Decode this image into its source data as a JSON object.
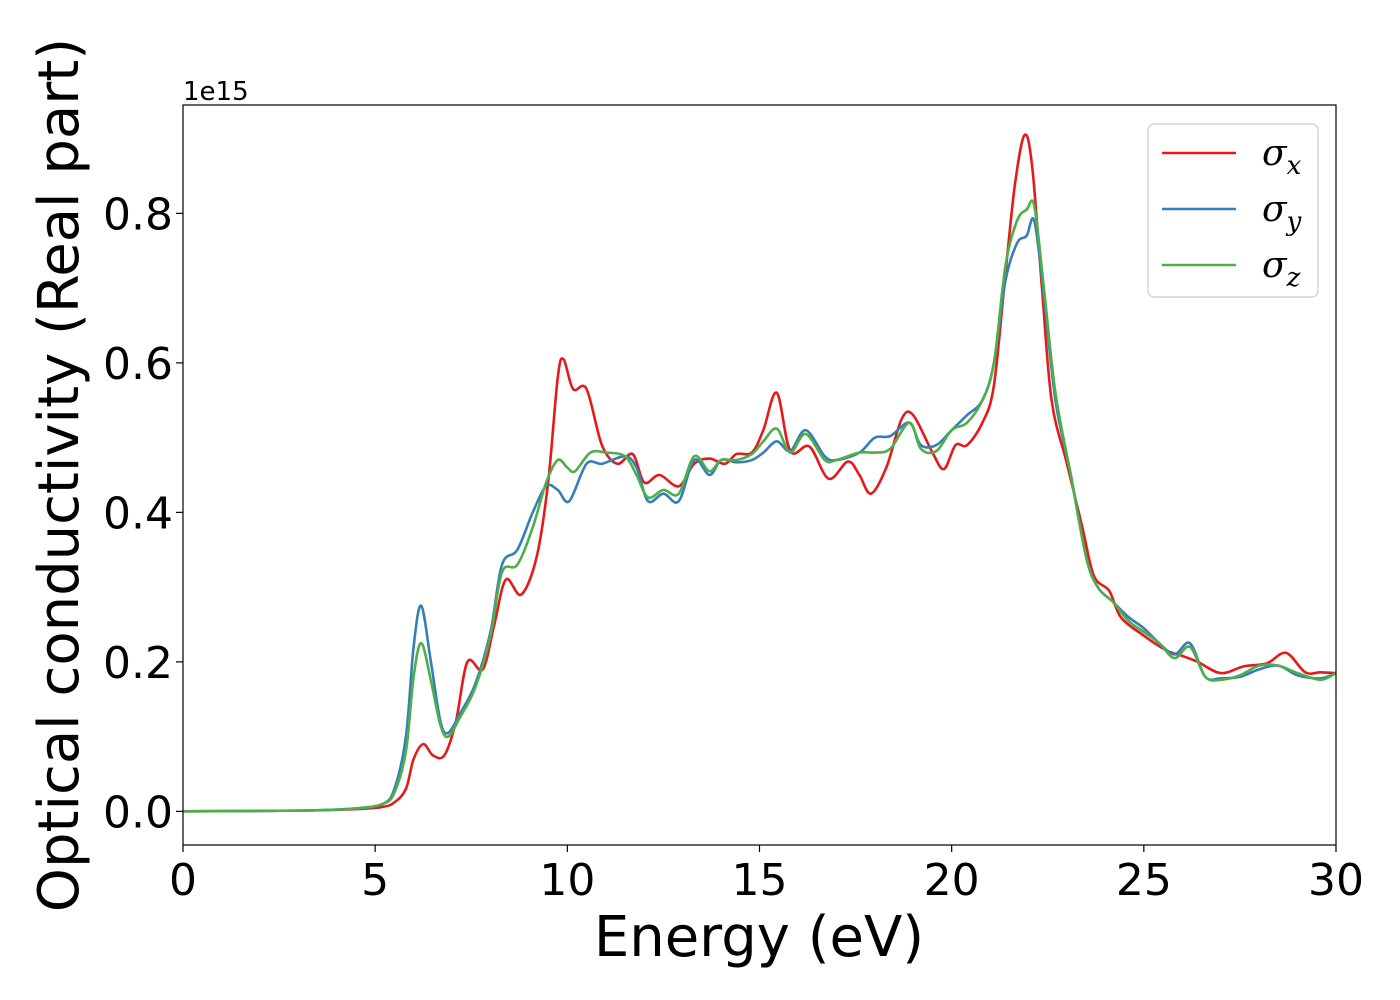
{
  "chart_data": {
    "type": "line",
    "xlabel": "Energy (eV)",
    "ylabel": "Optical conductivity (Real part)",
    "y_offset_label": "1e15",
    "xlim": [
      0,
      30
    ],
    "ylim": [
      -0.045,
      0.945
    ],
    "x_ticks": [
      0,
      5,
      10,
      15,
      20,
      25,
      30
    ],
    "x_tick_labels": [
      "0",
      "5",
      "10",
      "15",
      "20",
      "25",
      "30"
    ],
    "y_ticks": [
      0.0,
      0.2,
      0.4,
      0.6,
      0.8
    ],
    "y_tick_labels": [
      "0.0",
      "0.2",
      "0.4",
      "0.6",
      "0.8"
    ],
    "grid": false,
    "legend_position": "top-right",
    "series": [
      {
        "name": "σx",
        "symbol": "σ",
        "subscript": "x",
        "color": "#e41a1c",
        "points": [
          [
            0,
            0
          ],
          [
            3,
            0.001
          ],
          [
            4.5,
            0.003
          ],
          [
            5.2,
            0.006
          ],
          [
            5.5,
            0.012
          ],
          [
            5.8,
            0.03
          ],
          [
            6.0,
            0.07
          ],
          [
            6.25,
            0.09
          ],
          [
            6.5,
            0.075
          ],
          [
            6.8,
            0.075
          ],
          [
            7.1,
            0.12
          ],
          [
            7.4,
            0.2
          ],
          [
            7.8,
            0.19
          ],
          [
            8.1,
            0.25
          ],
          [
            8.4,
            0.31
          ],
          [
            8.8,
            0.29
          ],
          [
            9.2,
            0.34
          ],
          [
            9.5,
            0.44
          ],
          [
            9.75,
            0.58
          ],
          [
            9.9,
            0.605
          ],
          [
            10.15,
            0.565
          ],
          [
            10.5,
            0.565
          ],
          [
            10.9,
            0.49
          ],
          [
            11.3,
            0.465
          ],
          [
            11.7,
            0.478
          ],
          [
            12.0,
            0.44
          ],
          [
            12.4,
            0.45
          ],
          [
            12.9,
            0.435
          ],
          [
            13.3,
            0.465
          ],
          [
            13.7,
            0.472
          ],
          [
            14.1,
            0.465
          ],
          [
            14.4,
            0.478
          ],
          [
            14.8,
            0.48
          ],
          [
            15.1,
            0.51
          ],
          [
            15.45,
            0.56
          ],
          [
            15.8,
            0.482
          ],
          [
            16.3,
            0.488
          ],
          [
            16.8,
            0.445
          ],
          [
            17.3,
            0.468
          ],
          [
            17.6,
            0.45
          ],
          [
            17.9,
            0.425
          ],
          [
            18.3,
            0.46
          ],
          [
            18.7,
            0.525
          ],
          [
            19.0,
            0.53
          ],
          [
            19.5,
            0.48
          ],
          [
            19.8,
            0.458
          ],
          [
            20.1,
            0.49
          ],
          [
            20.4,
            0.49
          ],
          [
            20.8,
            0.52
          ],
          [
            21.1,
            0.57
          ],
          [
            21.4,
            0.72
          ],
          [
            21.65,
            0.84
          ],
          [
            21.9,
            0.905
          ],
          [
            22.1,
            0.86
          ],
          [
            22.35,
            0.7
          ],
          [
            22.6,
            0.55
          ],
          [
            23.0,
            0.465
          ],
          [
            23.4,
            0.38
          ],
          [
            23.7,
            0.315
          ],
          [
            24.1,
            0.295
          ],
          [
            24.4,
            0.26
          ],
          [
            25.0,
            0.235
          ],
          [
            25.6,
            0.215
          ],
          [
            26.0,
            0.208
          ],
          [
            26.4,
            0.2
          ],
          [
            27.0,
            0.185
          ],
          [
            27.6,
            0.194
          ],
          [
            28.2,
            0.198
          ],
          [
            28.7,
            0.212
          ],
          [
            29.2,
            0.186
          ],
          [
            29.6,
            0.186
          ],
          [
            30,
            0.185
          ]
        ]
      },
      {
        "name": "σy",
        "symbol": "σ",
        "subscript": "y",
        "color": "#377eb8",
        "points": [
          [
            0,
            0
          ],
          [
            3,
            0.001
          ],
          [
            4.5,
            0.004
          ],
          [
            5.2,
            0.01
          ],
          [
            5.5,
            0.03
          ],
          [
            5.8,
            0.1
          ],
          [
            6.0,
            0.22
          ],
          [
            6.2,
            0.275
          ],
          [
            6.45,
            0.2
          ],
          [
            6.7,
            0.12
          ],
          [
            6.9,
            0.105
          ],
          [
            7.2,
            0.13
          ],
          [
            7.6,
            0.17
          ],
          [
            8.0,
            0.24
          ],
          [
            8.3,
            0.33
          ],
          [
            8.7,
            0.35
          ],
          [
            9.1,
            0.4
          ],
          [
            9.45,
            0.435
          ],
          [
            9.75,
            0.43
          ],
          [
            10.05,
            0.415
          ],
          [
            10.5,
            0.465
          ],
          [
            10.9,
            0.465
          ],
          [
            11.5,
            0.475
          ],
          [
            11.8,
            0.46
          ],
          [
            12.1,
            0.415
          ],
          [
            12.5,
            0.425
          ],
          [
            12.9,
            0.415
          ],
          [
            13.3,
            0.47
          ],
          [
            13.7,
            0.45
          ],
          [
            14.0,
            0.47
          ],
          [
            14.4,
            0.467
          ],
          [
            14.8,
            0.47
          ],
          [
            15.1,
            0.48
          ],
          [
            15.45,
            0.495
          ],
          [
            15.8,
            0.482
          ],
          [
            16.2,
            0.51
          ],
          [
            16.7,
            0.475
          ],
          [
            17.0,
            0.47
          ],
          [
            17.6,
            0.48
          ],
          [
            18.0,
            0.5
          ],
          [
            18.4,
            0.502
          ],
          [
            18.9,
            0.52
          ],
          [
            19.2,
            0.49
          ],
          [
            19.6,
            0.49
          ],
          [
            20.0,
            0.51
          ],
          [
            20.4,
            0.53
          ],
          [
            20.8,
            0.55
          ],
          [
            21.1,
            0.6
          ],
          [
            21.4,
            0.71
          ],
          [
            21.7,
            0.76
          ],
          [
            21.95,
            0.77
          ],
          [
            22.15,
            0.79
          ],
          [
            22.4,
            0.69
          ],
          [
            22.7,
            0.55
          ],
          [
            23.1,
            0.45
          ],
          [
            23.5,
            0.34
          ],
          [
            23.8,
            0.3
          ],
          [
            24.2,
            0.28
          ],
          [
            24.6,
            0.26
          ],
          [
            25.0,
            0.245
          ],
          [
            25.4,
            0.225
          ],
          [
            25.8,
            0.21
          ],
          [
            26.2,
            0.225
          ],
          [
            26.6,
            0.18
          ],
          [
            27.0,
            0.178
          ],
          [
            27.5,
            0.18
          ],
          [
            28.0,
            0.19
          ],
          [
            28.5,
            0.195
          ],
          [
            29.0,
            0.182
          ],
          [
            29.6,
            0.178
          ],
          [
            30,
            0.185
          ]
        ]
      },
      {
        "name": "σz",
        "symbol": "σ",
        "subscript": "z",
        "color": "#4daf4a",
        "points": [
          [
            0,
            0
          ],
          [
            3,
            0.001
          ],
          [
            4.5,
            0.004
          ],
          [
            5.2,
            0.01
          ],
          [
            5.5,
            0.025
          ],
          [
            5.8,
            0.08
          ],
          [
            6.0,
            0.18
          ],
          [
            6.2,
            0.225
          ],
          [
            6.45,
            0.175
          ],
          [
            6.7,
            0.115
          ],
          [
            6.9,
            0.1
          ],
          [
            7.2,
            0.125
          ],
          [
            7.6,
            0.165
          ],
          [
            8.0,
            0.235
          ],
          [
            8.3,
            0.32
          ],
          [
            8.7,
            0.33
          ],
          [
            9.1,
            0.38
          ],
          [
            9.45,
            0.44
          ],
          [
            9.75,
            0.47
          ],
          [
            10.0,
            0.46
          ],
          [
            10.2,
            0.455
          ],
          [
            10.6,
            0.48
          ],
          [
            11.0,
            0.48
          ],
          [
            11.5,
            0.475
          ],
          [
            11.8,
            0.45
          ],
          [
            12.1,
            0.42
          ],
          [
            12.5,
            0.43
          ],
          [
            12.9,
            0.425
          ],
          [
            13.3,
            0.475
          ],
          [
            13.7,
            0.455
          ],
          [
            14.0,
            0.47
          ],
          [
            14.4,
            0.47
          ],
          [
            14.8,
            0.478
          ],
          [
            15.1,
            0.495
          ],
          [
            15.45,
            0.512
          ],
          [
            15.8,
            0.48
          ],
          [
            16.2,
            0.505
          ],
          [
            16.7,
            0.47
          ],
          [
            17.0,
            0.47
          ],
          [
            17.6,
            0.48
          ],
          [
            18.0,
            0.48
          ],
          [
            18.4,
            0.485
          ],
          [
            18.9,
            0.52
          ],
          [
            19.2,
            0.485
          ],
          [
            19.6,
            0.482
          ],
          [
            20.0,
            0.51
          ],
          [
            20.4,
            0.52
          ],
          [
            20.8,
            0.55
          ],
          [
            21.1,
            0.6
          ],
          [
            21.4,
            0.73
          ],
          [
            21.7,
            0.79
          ],
          [
            21.95,
            0.805
          ],
          [
            22.15,
            0.81
          ],
          [
            22.4,
            0.7
          ],
          [
            22.7,
            0.56
          ],
          [
            23.1,
            0.45
          ],
          [
            23.5,
            0.34
          ],
          [
            23.8,
            0.3
          ],
          [
            24.2,
            0.28
          ],
          [
            24.6,
            0.255
          ],
          [
            25.0,
            0.24
          ],
          [
            25.4,
            0.225
          ],
          [
            25.8,
            0.205
          ],
          [
            26.2,
            0.22
          ],
          [
            26.6,
            0.18
          ],
          [
            27.0,
            0.176
          ],
          [
            27.5,
            0.182
          ],
          [
            28.0,
            0.195
          ],
          [
            28.5,
            0.195
          ],
          [
            29.0,
            0.185
          ],
          [
            29.6,
            0.176
          ],
          [
            30,
            0.185
          ]
        ]
      }
    ]
  }
}
